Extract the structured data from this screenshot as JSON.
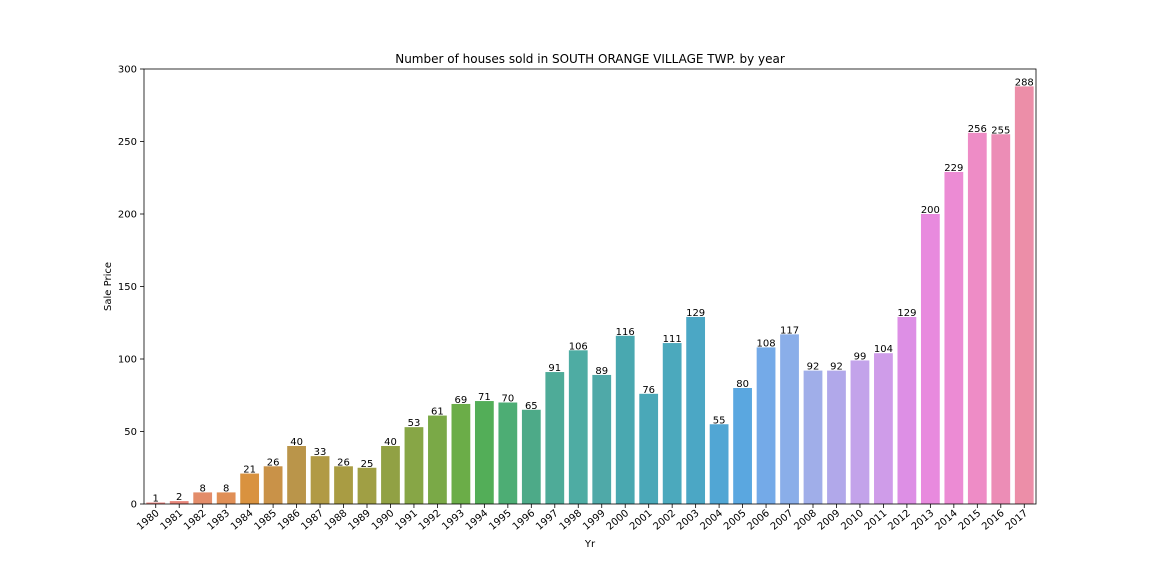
{
  "chart_data": {
    "type": "bar",
    "title": "Number of houses sold in SOUTH ORANGE VILLAGE TWP. by year",
    "xlabel": "Yr",
    "ylabel": "Sale Price",
    "ylim": [
      0,
      300
    ],
    "yticks": [
      "0",
      "50",
      "100",
      "150",
      "200",
      "250",
      "300"
    ],
    "grid": false,
    "categories": [
      "1980",
      "1981",
      "1982",
      "1983",
      "1984",
      "1985",
      "1986",
      "1987",
      "1988",
      "1989",
      "1990",
      "1991",
      "1992",
      "1993",
      "1994",
      "1995",
      "1996",
      "1997",
      "1998",
      "1999",
      "2000",
      "2001",
      "2002",
      "2003",
      "2004",
      "2005",
      "2006",
      "2007",
      "2008",
      "2009",
      "2010",
      "2011",
      "2012",
      "2013",
      "2014",
      "2015",
      "2016",
      "2017"
    ],
    "values": [
      1,
      2,
      8,
      8,
      21,
      26,
      40,
      33,
      26,
      25,
      40,
      53,
      61,
      69,
      71,
      70,
      65,
      91,
      106,
      89,
      116,
      76,
      111,
      129,
      55,
      80,
      108,
      117,
      92,
      92,
      99,
      104,
      129,
      200,
      229,
      256,
      255,
      288
    ],
    "data_labels": [
      "1",
      "2",
      "8",
      "8",
      "21",
      "26",
      "40",
      "33",
      "26",
      "25",
      "40",
      "53",
      "61",
      "69",
      "71",
      "70",
      "65",
      "91",
      "106",
      "89",
      "116",
      "76",
      "111",
      "129",
      "55",
      "80",
      "108",
      "117",
      "92",
      "92",
      "99",
      "104",
      "129",
      "200",
      "229",
      "256",
      "255",
      "288"
    ],
    "colors": [
      "#e9817d",
      "#e8867a",
      "#e38c69",
      "#e08f56",
      "#d9923f",
      "#c99248",
      "#ba954a",
      "#b19a45",
      "#a99c43",
      "#a09f44",
      "#91a144",
      "#87a646",
      "#7aa947",
      "#6bad48",
      "#53ae58",
      "#4dad74",
      "#4daa88",
      "#4eab98",
      "#4eaca3",
      "#4fa9a8",
      "#49a8b0",
      "#4aa8b8",
      "#4ba9bd",
      "#4ba7c5",
      "#51a6d4",
      "#5aa7e0",
      "#74aae8",
      "#8aaee9",
      "#a0aee9",
      "#b1a8ea",
      "#c3a3ea",
      "#cf9ce9",
      "#dd8fe5",
      "#e88ade",
      "#ec8bd4",
      "#ee8cc6",
      "#ec8db6",
      "#ec8ea8"
    ]
  }
}
